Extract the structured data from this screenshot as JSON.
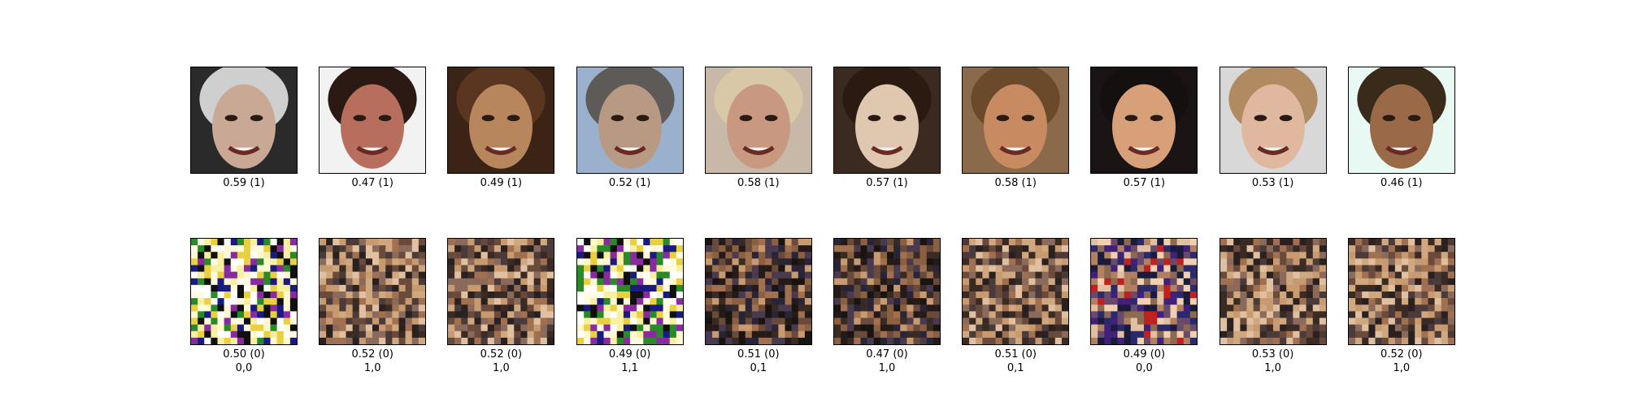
{
  "rows": {
    "real": {
      "tiles": [
        {
          "score": "0.59 (1)",
          "skin": "#c9a896",
          "hair": "#cfcfcf",
          "bg": "#2a2a2a"
        },
        {
          "score": "0.47 (1)",
          "skin": "#b86e5c",
          "hair": "#2b1a14",
          "bg": "#f2f2f2"
        },
        {
          "score": "0.49 (1)",
          "skin": "#b8865c",
          "hair": "#5a3520",
          "bg": "#3b2416"
        },
        {
          "score": "0.52 (1)",
          "skin": "#b89a84",
          "hair": "#5e5a58",
          "bg": "#9ab0cc"
        },
        {
          "score": "0.58 (1)",
          "skin": "#c89880",
          "hair": "#d8c8a8",
          "bg": "#c8b8a8"
        },
        {
          "score": "0.57 (1)",
          "skin": "#e0c8b0",
          "hair": "#2a1a12",
          "bg": "#3a2a20"
        },
        {
          "score": "0.58 (1)",
          "skin": "#c88a60",
          "hair": "#6a4a2a",
          "bg": "#8a6a4a"
        },
        {
          "score": "0.57 (1)",
          "skin": "#d8a078",
          "hair": "#141010",
          "bg": "#1a1414"
        },
        {
          "score": "0.53 (1)",
          "skin": "#e0b8a0",
          "hair": "#b08a60",
          "bg": "#d8d8d8"
        },
        {
          "score": "0.46 (1)",
          "skin": "#9a6a48",
          "hair": "#3a2a1a",
          "bg": "#e8f8f2"
        }
      ]
    },
    "fake": {
      "tiles": [
        {
          "score": "0.50 (0)",
          "code": "0,0",
          "style": "noise-bright"
        },
        {
          "score": "0.52 (0)",
          "code": "1,0",
          "style": "blur"
        },
        {
          "score": "0.52 (0)",
          "code": "1,0",
          "style": "blur"
        },
        {
          "score": "0.49 (0)",
          "code": "1,1",
          "style": "noise-bright"
        },
        {
          "score": "0.51 (0)",
          "code": "0,1",
          "style": "blur-dark"
        },
        {
          "score": "0.47 (0)",
          "code": "1,0",
          "style": "blur-dark"
        },
        {
          "score": "0.51 (0)",
          "code": "0,1",
          "style": "blur"
        },
        {
          "score": "0.49 (0)",
          "code": "0,0",
          "style": "noise-color"
        },
        {
          "score": "0.53 (0)",
          "code": "1,0",
          "style": "blur"
        },
        {
          "score": "0.52 (0)",
          "code": "1,0",
          "style": "blur"
        }
      ]
    }
  }
}
